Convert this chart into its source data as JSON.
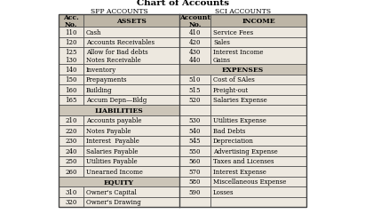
{
  "title": "Chart of Accounts",
  "sfp_label": "SFP ACCOUNTS",
  "sci_label": "SCI ACCOUNTS",
  "background": "#ede8df",
  "header_bg": "#bdb5a6",
  "section_bg": "#ccc5b8",
  "border_color": "#444444",
  "rows": [
    [
      "110",
      "Cash",
      "410",
      "Service Fees"
    ],
    [
      "120",
      "Accounts Receivables",
      "420",
      "Sales"
    ],
    [
      "125\n130",
      "Allow for Bad debts\nNotes Receivable",
      "430\n440",
      "Interest Income\nGains"
    ],
    [
      "140",
      "Inventory",
      "",
      "EXPENSES"
    ],
    [
      "150",
      "Prepayments",
      "510",
      "Cost of SAles"
    ],
    [
      "160",
      "Building",
      "515",
      "Freight-out"
    ],
    [
      "165",
      "Accum Depn—Bldg",
      "520",
      "Salaries Expense"
    ],
    [
      "",
      "LIABILITIES",
      "",
      ""
    ],
    [
      "210",
      "Accounts payable",
      "530",
      "Utilities Expense"
    ],
    [
      "220",
      "Notes Payable",
      "540",
      "Bad Debts"
    ],
    [
      "230",
      "Interest  Payable",
      "545",
      "Depreciation"
    ],
    [
      "240",
      "Salaries Payable",
      "550",
      "Advertising Expense"
    ],
    [
      "250",
      "Utilities Payable",
      "560",
      "Taxes and Licenses"
    ],
    [
      "260",
      "Unearned Income",
      "570",
      "Interest Expense"
    ],
    [
      "",
      "EQUITY",
      "580",
      "Miscellaneous Expense"
    ],
    [
      "310",
      "Owner's Capital",
      "590",
      "Losses"
    ],
    [
      "320",
      "Owner's Drawing",
      "",
      ""
    ]
  ],
  "title_fontsize": 7.5,
  "label_fontsize": 5.5,
  "header_fontsize": 5.5,
  "cell_fontsize": 5.0,
  "section_fontsize": 5.5
}
